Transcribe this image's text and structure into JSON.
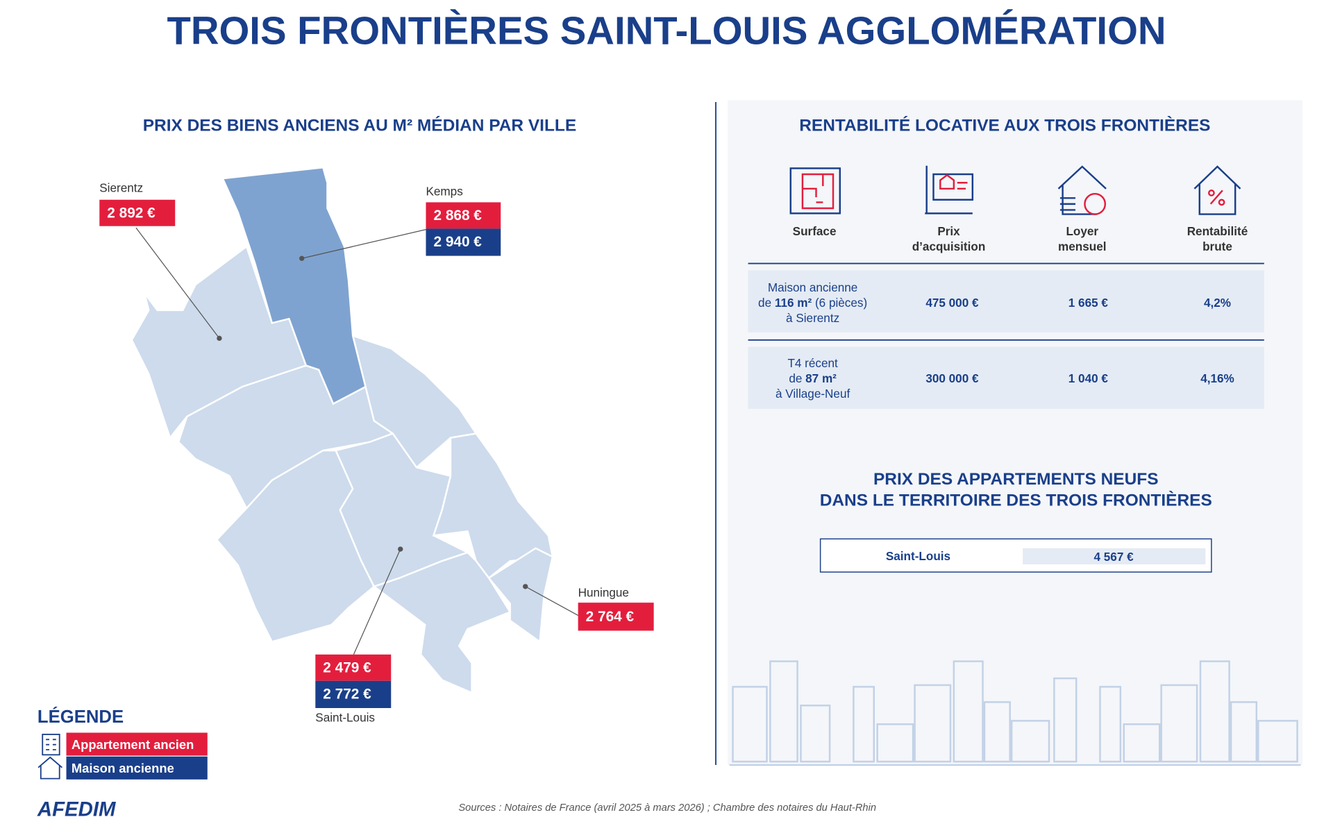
{
  "header": {
    "title": "TROIS FRONTIÈRES SAINT-LOUIS AGGLOMÉRATION"
  },
  "map": {
    "title": "PRIX DES BIENS ANCIENS AU M² MÉDIAN PAR VILLE",
    "cities": [
      {
        "name": "Sierentz",
        "prices": [
          "2 892 €"
        ]
      },
      {
        "name": "Kemps",
        "prices": [
          "2 868 €",
          "2 940 €"
        ]
      },
      {
        "name": "Huningue",
        "prices": [
          "2 764 €"
        ]
      },
      {
        "name": "Saint-Louis",
        "prices": [
          "2 479 €",
          "2 772 €"
        ]
      }
    ]
  },
  "legend": {
    "title": "LÉGENDE",
    "items": [
      "Appartement ancien",
      "Maison ancienne"
    ]
  },
  "rentability": {
    "title": "RENTABILITÉ LOCATIVE AUX TROIS FRONTIÈRES",
    "columns": [
      [
        "Surface"
      ],
      [
        "Prix",
        "d’acquisition"
      ],
      [
        "Loyer",
        "mensuel"
      ],
      [
        "Rentabilité",
        "brute"
      ]
    ],
    "rows": [
      {
        "desc": [
          "Maison ancienne",
          "de",
          "116 m²",
          "(6 pièces)",
          "à Sierentz"
        ],
        "price": "475 000 €",
        "rent": "1 665 €",
        "yield": "4,2%"
      },
      {
        "desc": [
          "T4 récent",
          "de",
          "87 m²",
          "à Village-Neuf"
        ],
        "price": "300 000 €",
        "rent": "1 040 €",
        "yield": "4,16%"
      }
    ]
  },
  "new_apartments": {
    "title": [
      "PRIX DES APPARTEMENTS NEUFS",
      "DANS LE TERRITOIRE DES TROIS FRONTIÈRES"
    ],
    "city": "Saint-Louis",
    "price": "4 567 €"
  },
  "footer": {
    "sources": "Sources : Notaires de France (avril 2025 à mars 2026) ; Chambre des notaires du Haut-Rhin",
    "logo": "AFEDIM"
  }
}
